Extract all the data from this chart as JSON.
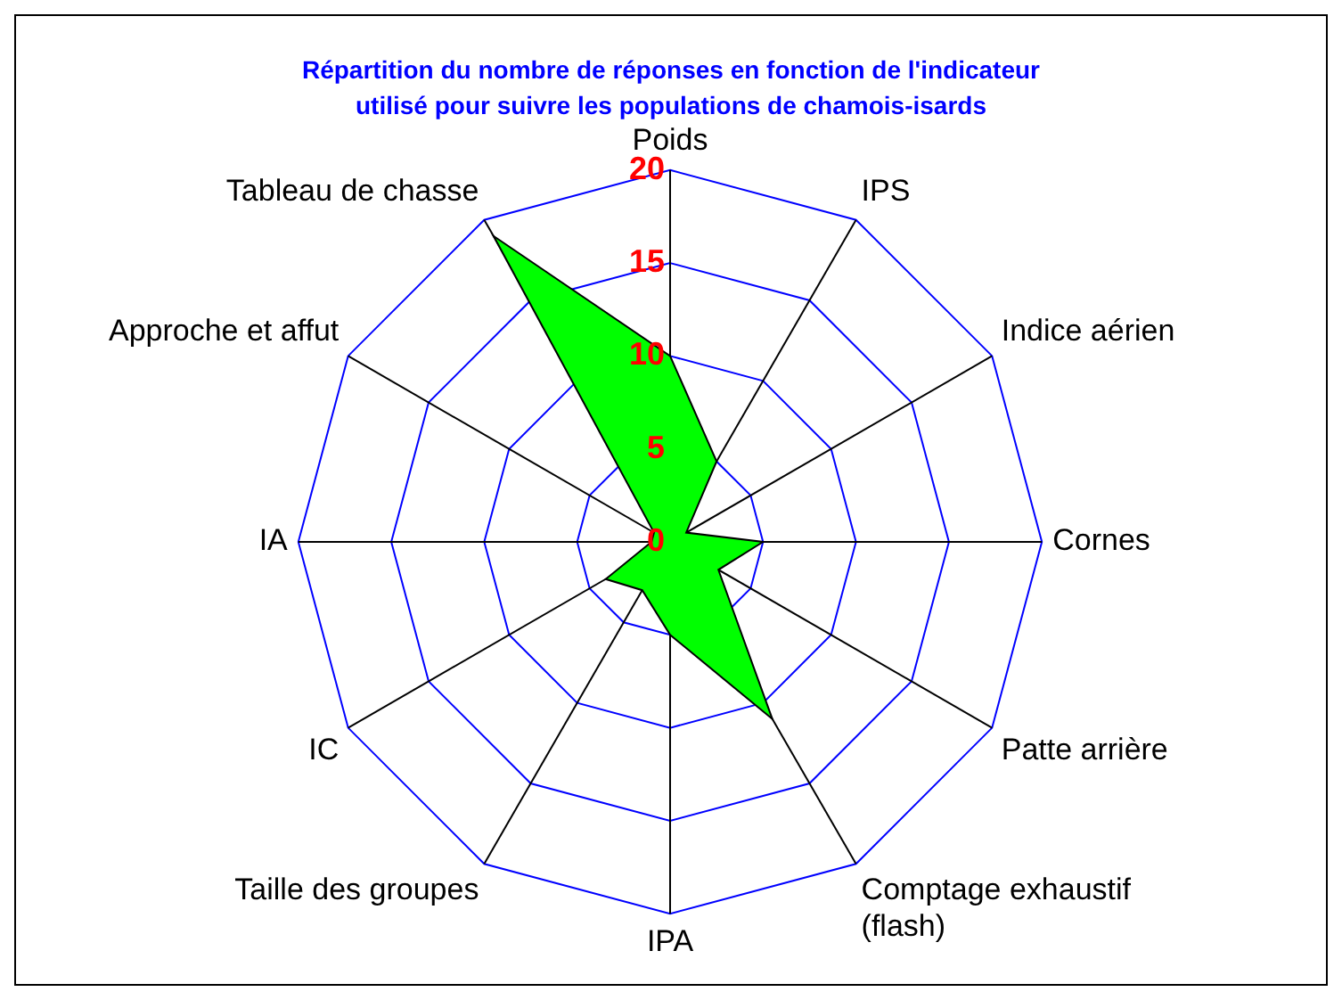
{
  "chart_data": {
    "type": "radar",
    "title": "Répartition du nombre de réponses en fonction de l'indicateur utilisé pour suivre les populations de chamois-isards",
    "categories": [
      "Poids",
      "IPS",
      "Indice aérien",
      "Cornes",
      "Patte arrière",
      "Comptage exhaustif (flash)",
      "IPA",
      "Taille des groupes",
      "IC",
      "IA",
      "Approche et affut",
      "Tableau de chasse"
    ],
    "series": [
      {
        "color": "#00ff00",
        "values": [
          10,
          5,
          1,
          5,
          3,
          11,
          5,
          3,
          4,
          1,
          1,
          19
        ]
      }
    ],
    "ylim": [
      0,
      20
    ],
    "yticks": [
      0,
      5,
      10,
      15,
      20
    ],
    "grid": true,
    "legend": false,
    "marker": "none"
  }
}
